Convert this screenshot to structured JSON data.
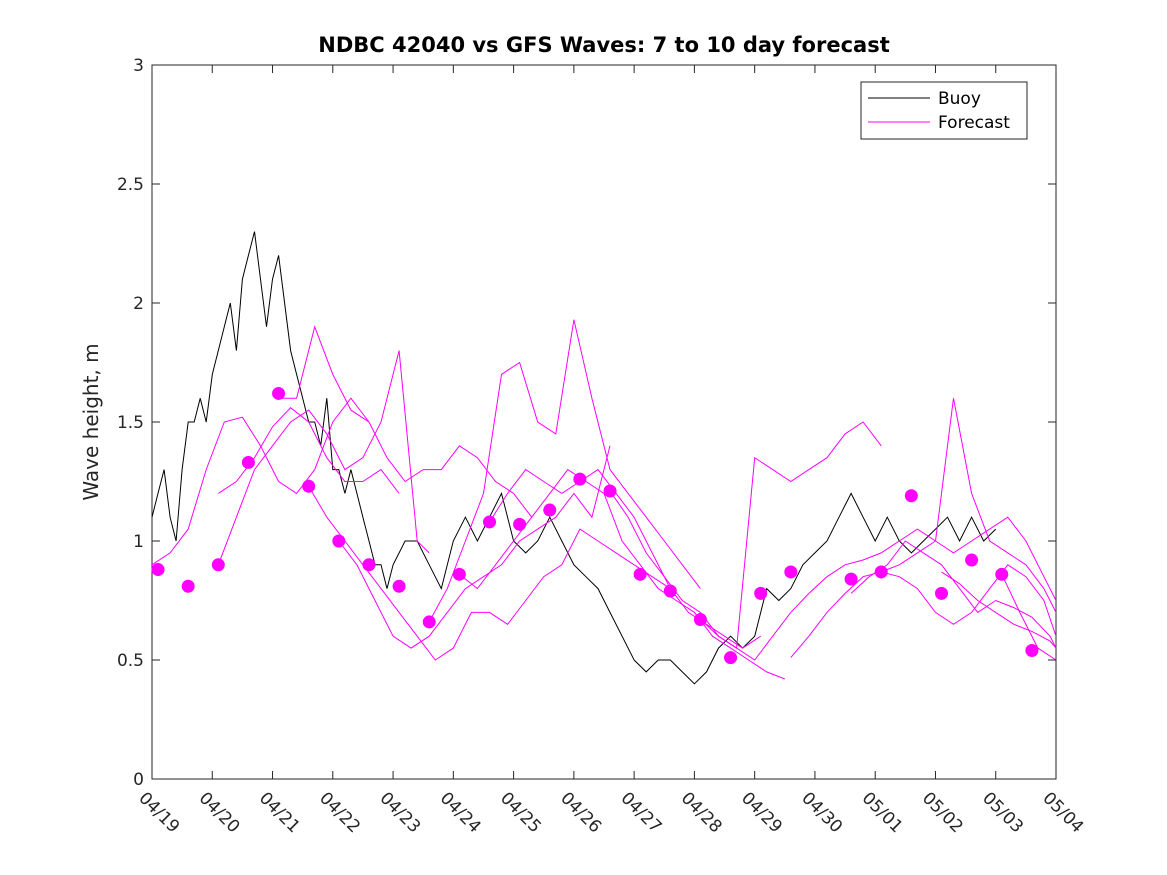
{
  "chart_data": {
    "type": "line",
    "title": "NDBC 42040 vs GFS Waves: 7 to 10 day forecast",
    "ylabel": "Wave height, m",
    "xlabel": "",
    "x_ticks": [
      "04/19",
      "04/20",
      "04/21",
      "04/22",
      "04/23",
      "04/24",
      "04/25",
      "04/26",
      "04/27",
      "04/28",
      "04/29",
      "04/30",
      "05/01",
      "05/02",
      "05/03",
      "05/04"
    ],
    "xlim": [
      0,
      15
    ],
    "ylim": [
      0,
      3
    ],
    "y_ticks": [
      "0",
      "0.5",
      "1",
      "1.5",
      "2",
      "2.5",
      "3"
    ],
    "grid": false,
    "legend": {
      "position": "top-right",
      "entries": [
        {
          "label": "Buoy",
          "color": "#000000"
        },
        {
          "label": "Forecast",
          "color": "#ff00ff"
        }
      ]
    },
    "series": [
      {
        "name": "Buoy",
        "color": "#000000",
        "style": "line",
        "x": [
          0,
          0.1,
          0.2,
          0.3,
          0.4,
          0.5,
          0.6,
          0.7,
          0.8,
          0.9,
          1.0,
          1.1,
          1.2,
          1.3,
          1.4,
          1.5,
          1.6,
          1.7,
          1.8,
          1.9,
          2.0,
          2.1,
          2.2,
          2.3,
          2.4,
          2.5,
          2.6,
          2.7,
          2.8,
          2.9,
          3.0,
          3.1,
          3.2,
          3.3,
          3.4,
          3.5,
          3.6,
          3.7,
          3.8,
          3.9,
          4.0,
          4.2,
          4.4,
          4.6,
          4.8,
          5.0,
          5.2,
          5.4,
          5.6,
          5.8,
          6.0,
          6.2,
          6.4,
          6.6,
          6.8,
          7.0,
          7.2,
          7.4,
          7.6,
          7.8,
          8.0,
          8.2,
          8.4,
          8.6,
          8.8,
          9.0,
          9.2,
          9.4,
          9.6,
          9.8,
          10.0,
          10.2,
          10.4,
          10.6,
          10.8,
          11.0,
          11.2,
          11.4,
          11.6,
          11.8,
          12.0,
          12.2,
          12.4,
          12.6,
          12.8,
          13.0,
          13.2,
          13.4,
          13.6,
          13.8,
          14.0
        ],
        "y": [
          1.1,
          1.2,
          1.3,
          1.1,
          1.0,
          1.3,
          1.5,
          1.5,
          1.6,
          1.5,
          1.7,
          1.8,
          1.9,
          2.0,
          1.8,
          2.1,
          2.2,
          2.3,
          2.1,
          1.9,
          2.1,
          2.2,
          2.0,
          1.8,
          1.7,
          1.6,
          1.5,
          1.5,
          1.4,
          1.6,
          1.3,
          1.3,
          1.2,
          1.3,
          1.2,
          1.1,
          1.0,
          0.9,
          0.9,
          0.8,
          0.9,
          1.0,
          1.0,
          0.9,
          0.8,
          1.0,
          1.1,
          1.0,
          1.1,
          1.2,
          1.0,
          0.95,
          1.0,
          1.1,
          1.0,
          0.9,
          0.85,
          0.8,
          0.7,
          0.6,
          0.5,
          0.45,
          0.5,
          0.5,
          0.45,
          0.4,
          0.45,
          0.55,
          0.6,
          0.55,
          0.6,
          0.8,
          0.75,
          0.8,
          0.9,
          0.95,
          1.0,
          1.1,
          1.2,
          1.1,
          1.0,
          1.1,
          1.0,
          0.95,
          1.0,
          1.05,
          1.1,
          1.0,
          1.1,
          1.0,
          1.05
        ]
      },
      {
        "name": "Forecast",
        "color": "#ff00ff",
        "style": "line",
        "x": [
          0,
          0.3,
          0.6,
          0.9,
          1.2,
          1.5,
          1.8,
          2.1,
          2.4,
          2.7,
          3.0,
          3.3,
          3.6
        ],
        "y": [
          0.9,
          0.95,
          1.05,
          1.3,
          1.5,
          1.52,
          1.4,
          1.25,
          1.2,
          1.3,
          1.5,
          1.6,
          1.5
        ]
      },
      {
        "x": [
          1.1,
          1.4,
          1.7,
          2.0,
          2.3,
          2.6,
          2.9,
          3.2,
          3.5,
          3.8,
          4.1
        ],
        "y": [
          1.2,
          1.25,
          1.35,
          1.48,
          1.56,
          1.5,
          1.35,
          1.25,
          1.25,
          1.3,
          1.2
        ]
      },
      {
        "x": [
          1.1,
          1.4,
          1.7,
          2.0,
          2.3,
          2.6,
          2.9,
          3.2,
          3.5,
          3.8,
          4.1,
          4.4,
          4.6
        ],
        "y": [
          0.9,
          1.1,
          1.3,
          1.4,
          1.5,
          1.55,
          1.45,
          1.3,
          1.35,
          1.5,
          1.8,
          1.0,
          0.95
        ]
      },
      {
        "x": [
          2.1,
          2.4,
          2.7,
          3.0,
          3.3,
          3.6,
          3.9,
          4.2,
          4.5,
          4.8,
          5.1,
          5.4,
          5.7,
          6.0,
          6.3
        ],
        "y": [
          1.6,
          1.6,
          1.9,
          1.7,
          1.55,
          1.5,
          1.35,
          1.25,
          1.3,
          1.3,
          1.4,
          1.35,
          1.25,
          1.2,
          1.1
        ]
      },
      {
        "x": [
          2.6,
          2.9,
          3.2,
          3.5,
          3.8,
          4.1,
          4.4,
          4.7,
          5.0,
          5.3,
          5.6,
          5.9,
          6.2,
          6.5,
          6.8,
          7.1,
          7.4,
          7.7,
          8.0,
          8.3,
          8.6
        ],
        "y": [
          1.23,
          1.1,
          1.0,
          0.9,
          0.8,
          0.7,
          0.6,
          0.5,
          0.55,
          0.7,
          0.7,
          0.65,
          0.75,
          0.85,
          0.9,
          1.05,
          1.0,
          0.95,
          0.9,
          0.85,
          0.8
        ]
      },
      {
        "x": [
          3.1,
          3.4,
          3.7,
          4.0,
          4.3,
          4.6,
          4.9,
          5.2,
          5.5,
          5.8,
          6.1,
          6.4,
          6.7,
          7.0,
          7.3,
          7.6
        ],
        "y": [
          1.0,
          0.9,
          0.75,
          0.6,
          0.55,
          0.6,
          0.7,
          0.8,
          0.85,
          0.9,
          1.0,
          1.05,
          1.1,
          1.2,
          1.1,
          1.4
        ]
      },
      {
        "x": [
          4.6,
          4.9,
          5.2,
          5.5,
          5.8,
          6.1,
          6.4,
          6.7,
          7.0,
          7.3,
          7.6,
          7.9,
          8.2,
          8.5,
          8.8,
          9.1
        ],
        "y": [
          0.66,
          0.8,
          1.0,
          1.2,
          1.7,
          1.75,
          1.5,
          1.45,
          1.93,
          1.6,
          1.3,
          1.2,
          1.1,
          1.0,
          0.9,
          0.8
        ]
      },
      {
        "x": [
          5.1,
          5.4,
          5.7,
          6.0,
          6.3,
          6.6,
          6.9,
          7.2,
          7.5,
          7.8,
          8.1,
          8.4,
          8.7,
          9.0,
          9.3,
          9.6,
          9.9,
          10.2,
          10.5
        ],
        "y": [
          0.86,
          0.8,
          0.9,
          1.0,
          1.1,
          1.2,
          1.3,
          1.25,
          1.2,
          1.0,
          0.9,
          0.8,
          0.75,
          0.7,
          0.6,
          0.55,
          0.5,
          0.45,
          0.42
        ]
      },
      {
        "x": [
          5.6,
          5.9,
          6.2,
          6.5,
          6.8,
          7.1,
          7.4,
          7.7,
          8.0,
          8.3,
          8.6,
          8.9,
          9.2,
          9.5,
          9.8,
          10.1
        ],
        "y": [
          1.08,
          1.2,
          1.3,
          1.25,
          1.2,
          1.25,
          1.3,
          1.2,
          1.1,
          0.95,
          0.8,
          0.7,
          0.65,
          0.6,
          0.55,
          0.6
        ]
      },
      {
        "x": [
          7.6,
          7.9,
          8.2,
          8.5,
          8.8,
          9.1,
          9.4,
          9.7,
          10.0,
          10.3,
          10.6,
          10.9,
          11.2,
          11.5,
          11.8,
          12.1
        ],
        "y": [
          1.21,
          1.1,
          0.95,
          0.85,
          0.75,
          0.7,
          0.6,
          0.55,
          1.35,
          1.3,
          1.25,
          1.3,
          1.35,
          1.45,
          1.5,
          1.4
        ]
      },
      {
        "x": [
          9.1,
          9.4,
          9.7,
          10.0,
          10.3,
          10.6,
          10.9,
          11.2,
          11.5,
          11.8,
          12.1,
          12.4,
          12.7,
          13.0,
          13.3,
          13.6,
          13.9,
          14.2,
          14.5,
          14.8,
          15.0
        ],
        "y": [
          0.67,
          0.6,
          0.55,
          0.5,
          0.6,
          0.7,
          0.78,
          0.85,
          0.9,
          0.92,
          0.95,
          1.0,
          1.05,
          1.0,
          0.95,
          1.0,
          1.05,
          1.1,
          1.0,
          0.85,
          0.75
        ]
      },
      {
        "x": [
          10.6,
          10.9,
          11.2,
          11.5,
          11.8,
          12.1,
          12.4,
          12.7,
          13.0,
          13.3,
          13.6,
          13.9,
          14.2,
          14.5,
          14.8,
          15.0
        ],
        "y": [
          0.51,
          0.6,
          0.7,
          0.78,
          0.85,
          0.87,
          0.9,
          0.95,
          1.0,
          1.6,
          1.2,
          1.0,
          0.95,
          0.9,
          0.8,
          0.7
        ]
      },
      {
        "x": [
          11.6,
          11.9,
          12.2,
          12.5,
          12.8,
          13.1,
          13.4,
          13.7,
          14.0,
          14.3,
          14.6,
          14.9,
          15.0
        ],
        "y": [
          0.78,
          0.85,
          0.9,
          1.0,
          0.95,
          0.9,
          0.8,
          0.7,
          0.75,
          0.72,
          0.68,
          0.6,
          0.55
        ]
      },
      {
        "x": [
          12.1,
          12.4,
          12.7,
          13.0,
          13.3,
          13.6,
          13.9,
          14.2,
          14.5,
          14.8,
          15.0
        ],
        "y": [
          0.87,
          0.85,
          0.8,
          0.7,
          0.65,
          0.7,
          0.8,
          0.9,
          0.85,
          0.75,
          0.6
        ]
      },
      {
        "x": [
          13.1,
          13.4,
          13.7,
          14.0,
          14.3,
          14.6,
          14.9,
          15.0
        ],
        "y": [
          0.87,
          0.82,
          0.75,
          0.7,
          0.65,
          0.62,
          0.58,
          0.55
        ]
      },
      {
        "x": [
          14.1,
          14.4,
          14.7,
          15.0
        ],
        "y": [
          0.86,
          0.7,
          0.55,
          0.5
        ]
      },
      {
        "color": "#ff00ff",
        "style": "markers",
        "x": [
          0.1,
          0.6,
          1.1,
          1.6,
          2.1,
          2.6,
          3.1,
          3.6,
          4.1,
          4.6,
          5.1,
          5.6,
          6.1,
          6.6,
          7.1,
          7.6,
          8.1,
          8.6,
          9.1,
          9.6,
          10.1,
          10.6,
          11.6,
          12.1,
          12.6,
          13.1,
          13.6,
          14.1,
          14.6
        ],
        "y": [
          0.88,
          0.81,
          0.9,
          1.33,
          1.62,
          1.23,
          1.0,
          0.9,
          0.81,
          0.66,
          0.86,
          1.08,
          1.07,
          1.13,
          1.26,
          1.21,
          0.86,
          0.79,
          0.67,
          0.51,
          0.78,
          0.87,
          0.84,
          0.87,
          1.19,
          0.78,
          0.92,
          0.86,
          0.54
        ]
      }
    ]
  }
}
